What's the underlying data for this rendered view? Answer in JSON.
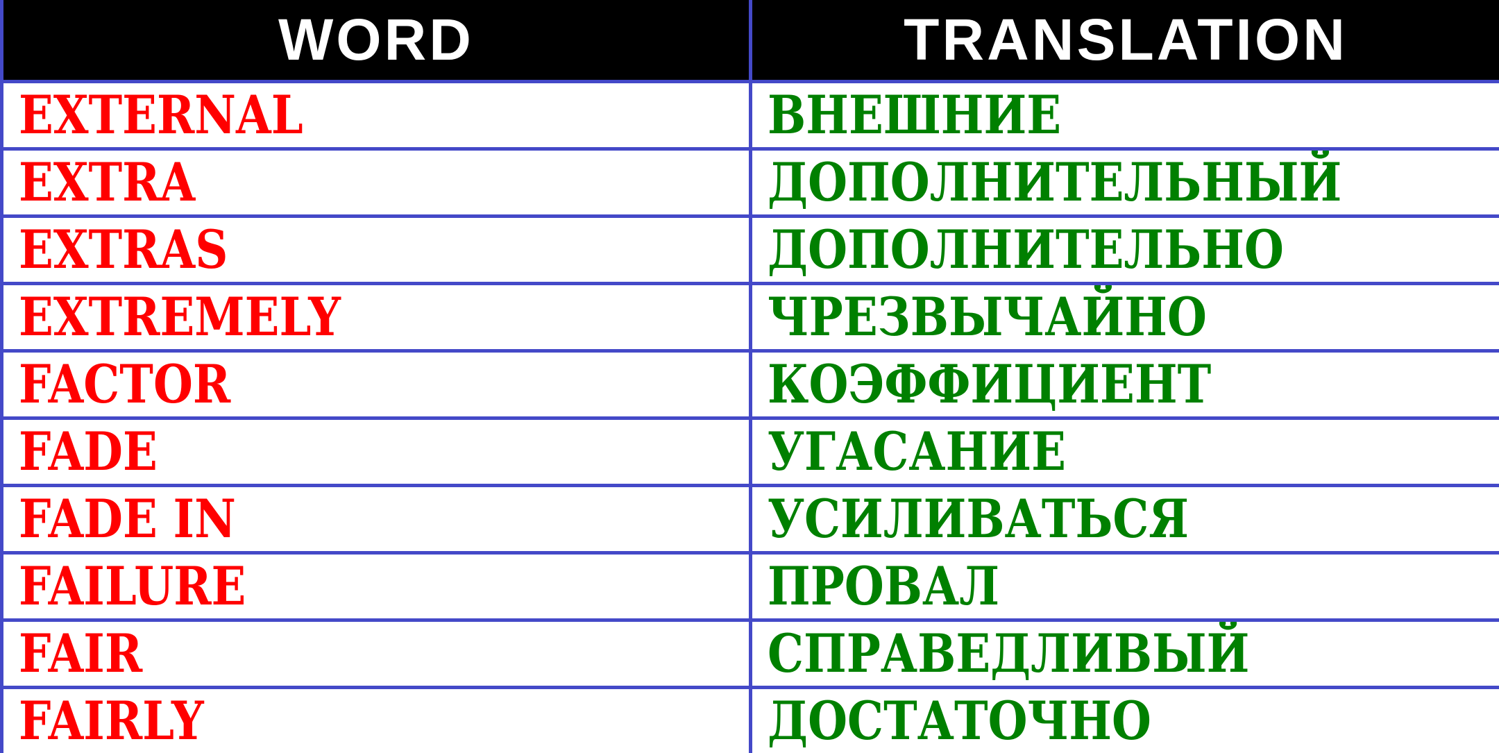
{
  "header": {
    "word": "WORD",
    "translation": "TRANSLATION"
  },
  "colors": {
    "border": "#4449c8",
    "word": "#ff0000",
    "translation": "#008000",
    "header_bg": "#000000"
  },
  "rows": [
    {
      "word": "EXTERNAL",
      "translation": "ВНЕШНИЕ"
    },
    {
      "word": "EXTRA",
      "translation": "ДОПОЛНИТЕЛЬНЫЙ"
    },
    {
      "word": "EXTRAS",
      "translation": "ДОПОЛНИТЕЛЬНО"
    },
    {
      "word": "EXTREMELY",
      "translation": "ЧРЕЗВЫЧАЙНО"
    },
    {
      "word": "FACTOR",
      "translation": "КОЭФФИЦИЕНТ"
    },
    {
      "word": "FADE",
      "translation": "УГАСАНИЕ"
    },
    {
      "word": "FADE IN",
      "translation": "УСИЛИВАТЬСЯ"
    },
    {
      "word": "FAILURE",
      "translation": "ПРОВАЛ"
    },
    {
      "word": "FAIR",
      "translation": "СПРАВЕДЛИВЫЙ"
    },
    {
      "word": "FAIRLY",
      "translation": "ДОСТАТОЧНО"
    }
  ]
}
